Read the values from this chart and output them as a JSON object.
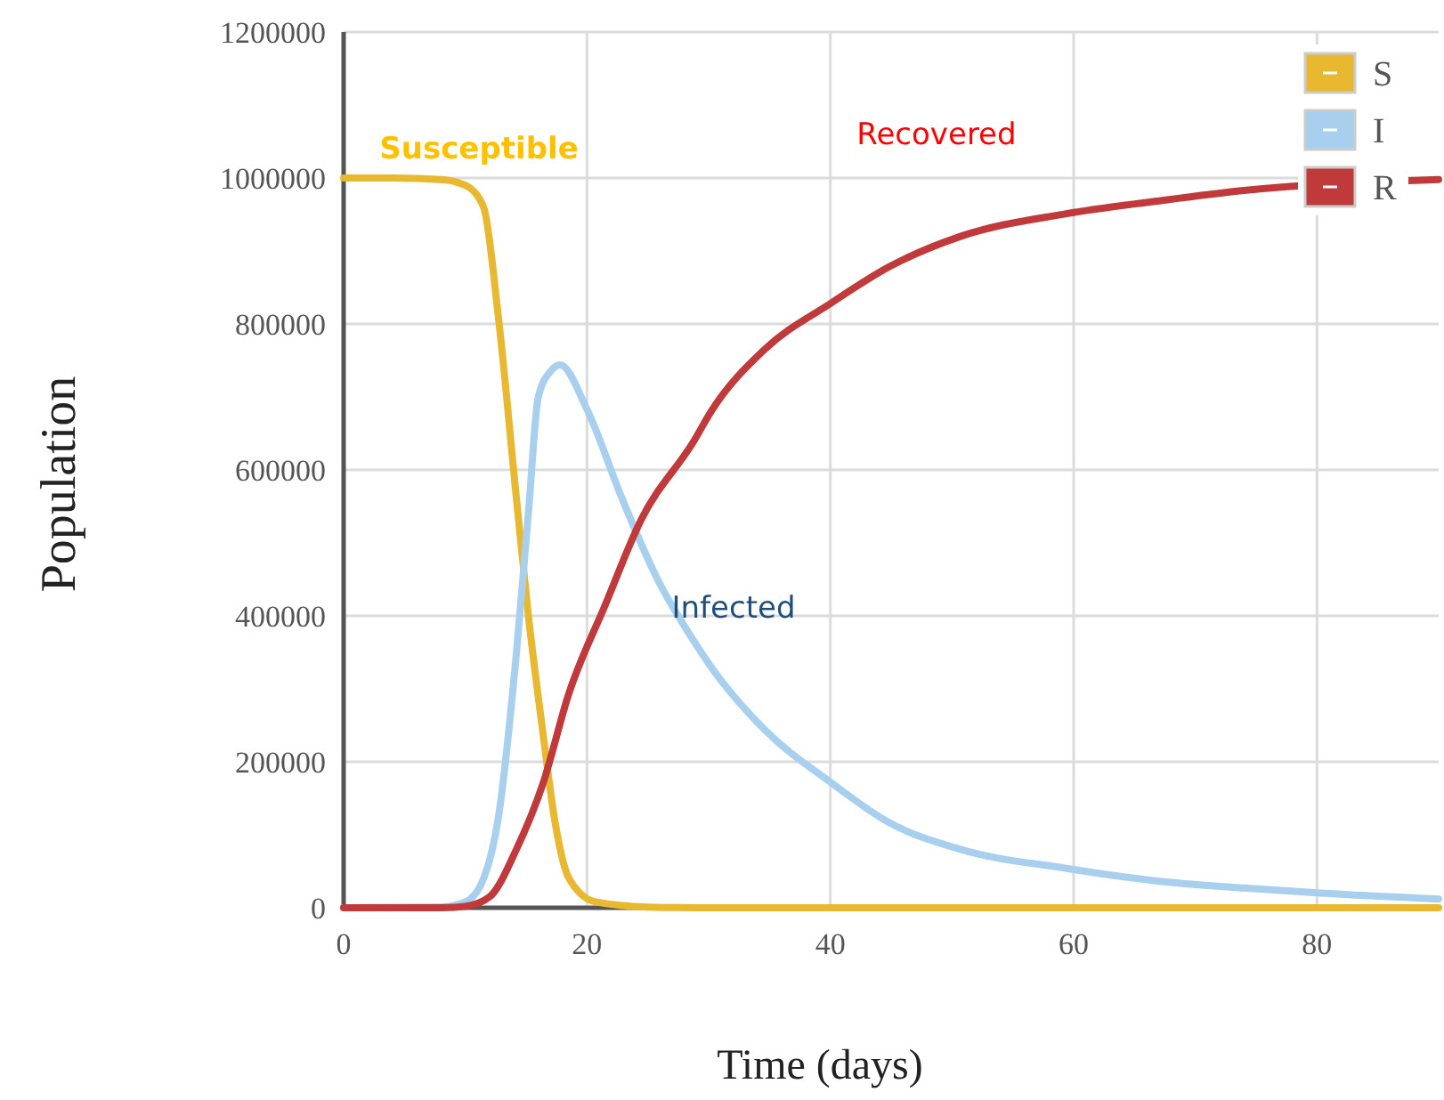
{
  "chart_data": {
    "type": "line",
    "xlabel": "Time (days)",
    "ylabel": "Population",
    "xlim": [
      0,
      90
    ],
    "xticks": [
      0,
      20,
      40,
      60,
      80
    ],
    "ylim": [
      0,
      1200000
    ],
    "yticks": [
      0,
      200000,
      400000,
      600000,
      800000,
      1000000,
      1200000
    ],
    "grid": true,
    "legend": "top right",
    "marker": "none",
    "line_style": "solid",
    "series": [
      {
        "name": "S",
        "color": "#e8b830",
        "x": [
          0,
          4,
          8,
          10,
          11.5,
          12.7,
          14.2,
          15.2,
          16.4,
          17.4,
          18.5,
          20.7,
          25,
          30,
          40,
          60,
          90
        ],
        "values": [
          1000000,
          1000000,
          998000,
          990000,
          960000,
          812000,
          561000,
          398000,
          237000,
          115000,
          41000,
          8000,
          1000,
          0,
          0,
          0,
          0
        ]
      },
      {
        "name": "I",
        "color": "#a8d0ee",
        "x": [
          0,
          8,
          10,
          11.5,
          12.7,
          14.2,
          15.2,
          16,
          17,
          17.8,
          20,
          22.9,
          25.8,
          28.8,
          30.2,
          34.6,
          40.1,
          44.8,
          50.7,
          59.4,
          66.7,
          74,
          80.3,
          90
        ],
        "values": [
          0,
          1000,
          8000,
          40000,
          122000,
          349000,
          544000,
          700000,
          735000,
          744000,
          683000,
          560000,
          450000,
          365000,
          330000,
          244000,
          171000,
          117000,
          80000,
          54000,
          37000,
          27000,
          20000,
          12000
        ]
      },
      {
        "name": "R",
        "color": "#c0393b",
        "x": [
          0,
          8,
          10,
          12,
          14.2,
          16.4,
          18.5,
          21.5,
          24.4,
          28.8,
          30.2,
          34.6,
          40.1,
          44.8,
          50.7,
          59.4,
          66.7,
          74,
          90
        ],
        "values": [
          0,
          0,
          2000,
          15000,
          80000,
          171000,
          293000,
          415000,
          530000,
          640000,
          680000,
          765000,
          829000,
          878000,
          920000,
          951000,
          968000,
          983000,
          998000
        ]
      }
    ],
    "annotations": [
      "Susceptible",
      "Recovered",
      "Infected"
    ]
  }
}
